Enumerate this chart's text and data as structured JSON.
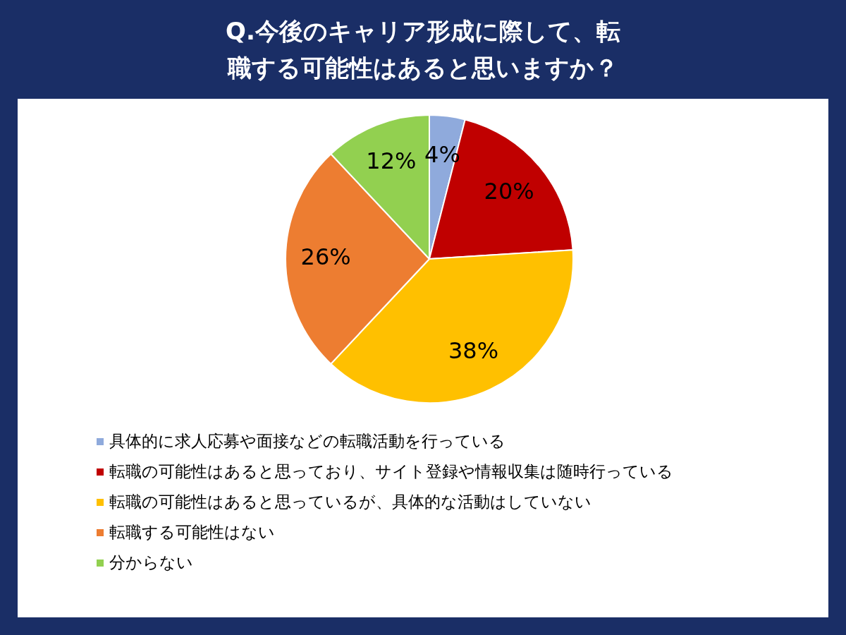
{
  "chart_data": {
    "type": "pie",
    "title": "Q.今後のキャリア形成に際して、転職する可能性はあると思いますか？",
    "categories": [
      "具体的に求人応募や面接などの転職活動を行っている",
      "転職の可能性はあると思っており、サイト登録や情報収集は随時行っている",
      "転職の可能性はあると思っているが、具体的な活動はしていない",
      "転職する可能性はない",
      "分からない"
    ],
    "values": [
      4,
      20,
      38,
      26,
      12
    ],
    "colors": [
      "#8faadc",
      "#c00000",
      "#ffc000",
      "#ed7d31",
      "#92d050"
    ],
    "value_labels": [
      "4%",
      "20%",
      "38%",
      "26%",
      "12%"
    ],
    "legend": "bottom"
  }
}
